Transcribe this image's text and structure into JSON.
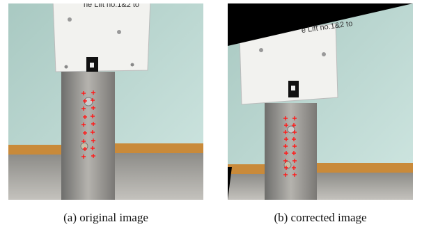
{
  "figure": {
    "panels": [
      {
        "caption": "(a) original image",
        "sign_text": "he Lift no.1&2 to"
      },
      {
        "caption": "(b) corrected image",
        "sign_text": "e Lift no.1&2 to"
      }
    ]
  }
}
